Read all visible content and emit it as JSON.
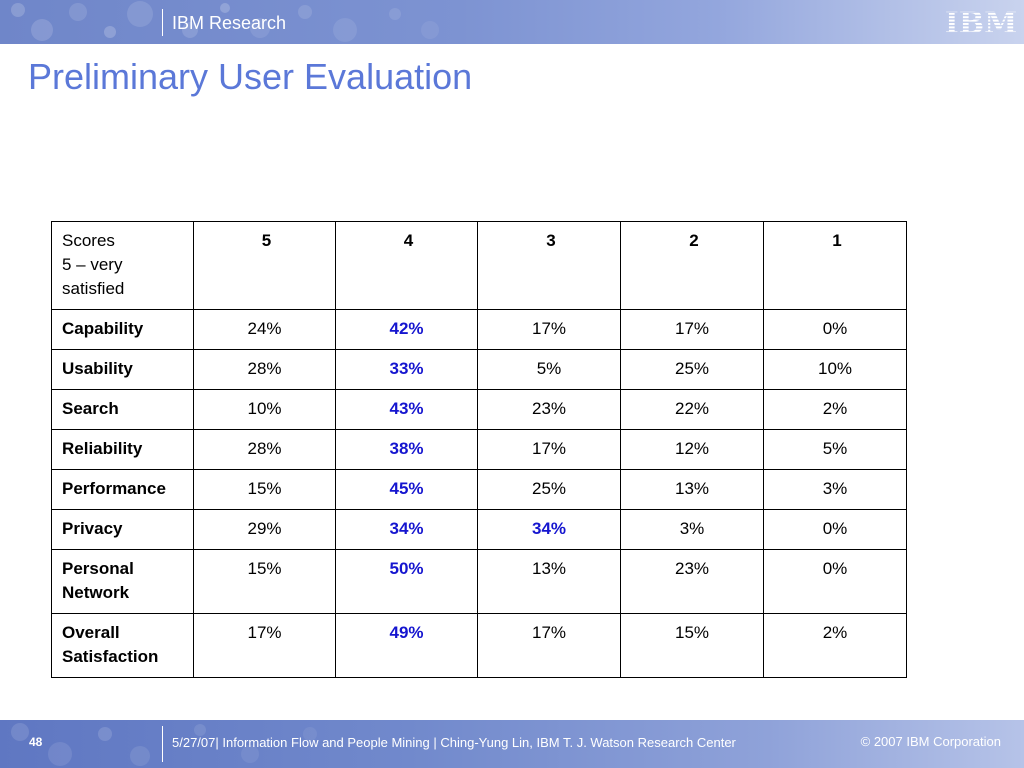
{
  "header": {
    "brand": "IBM Research",
    "logo_text": "IBM"
  },
  "title": "Preliminary User Evaluation",
  "table": {
    "corner_lines": [
      "Scores",
      "5 – very",
      "satisfied"
    ],
    "score_headers": [
      "5",
      "4",
      "3",
      "2",
      "1"
    ],
    "rows": [
      {
        "label_lines": [
          "Capability"
        ],
        "values": [
          "24%",
          "42%",
          "17%",
          "17%",
          "0%"
        ],
        "highlight": [
          1
        ]
      },
      {
        "label_lines": [
          "Usability"
        ],
        "values": [
          "28%",
          "33%",
          "5%",
          "25%",
          "10%"
        ],
        "highlight": [
          1
        ]
      },
      {
        "label_lines": [
          "Search"
        ],
        "values": [
          "10%",
          "43%",
          "23%",
          "22%",
          "2%"
        ],
        "highlight": [
          1
        ]
      },
      {
        "label_lines": [
          "Reliability"
        ],
        "values": [
          "28%",
          "38%",
          "17%",
          "12%",
          "5%"
        ],
        "highlight": [
          1
        ]
      },
      {
        "label_lines": [
          "Performance"
        ],
        "values": [
          "15%",
          "45%",
          "25%",
          "13%",
          "3%"
        ],
        "highlight": [
          1
        ]
      },
      {
        "label_lines": [
          "Privacy"
        ],
        "values": [
          "29%",
          "34%",
          "34%",
          "3%",
          "0%"
        ],
        "highlight": [
          1,
          2
        ]
      },
      {
        "label_lines": [
          "Personal",
          "Network"
        ],
        "values": [
          "15%",
          "50%",
          "13%",
          "23%",
          "0%"
        ],
        "highlight": [
          1
        ]
      },
      {
        "label_lines": [
          "Overall",
          "Satisfaction"
        ],
        "values": [
          "17%",
          "49%",
          "17%",
          "15%",
          "2%"
        ],
        "highlight": [
          1
        ]
      }
    ]
  },
  "footer": {
    "page_number": "48",
    "text": "5/27/07| Information Flow and People Mining | Ching-Yung Lin, IBM T. J. Watson Research Center",
    "copyright": "© 2007 IBM Corporation"
  },
  "colors": {
    "title": "#5b78d8",
    "highlight": "#1515cf",
    "band": "#7189cc"
  }
}
